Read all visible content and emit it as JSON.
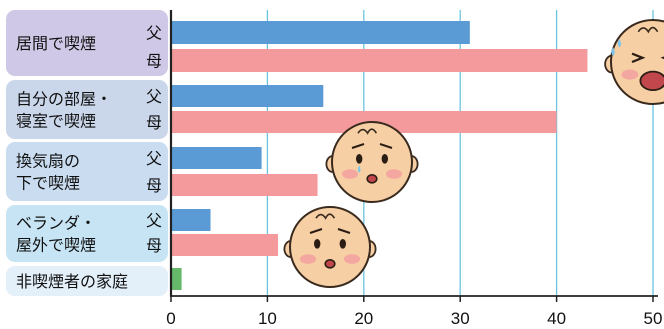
{
  "chart_data": {
    "type": "bar",
    "orientation": "horizontal",
    "categories": [
      {
        "label": [
          "居間で喫煙"
        ],
        "bg": "#cfc8e6"
      },
      {
        "label": [
          "自分の部屋・",
          "寝室で喫煙"
        ],
        "bg": "#cad6ea"
      },
      {
        "label": [
          "換気扇の",
          "下で喫煙"
        ],
        "bg": "#c9dcf0"
      },
      {
        "label": [
          "ベランダ・",
          "屋外で喫煙"
        ],
        "bg": "#c7e4f4"
      },
      {
        "label": [
          "非喫煙者の家庭"
        ],
        "bg": "#e3eff9"
      }
    ],
    "series": [
      {
        "name": "父",
        "color": "#5b9bd5",
        "values": [
          31,
          15.8,
          9.4,
          4.1,
          null
        ]
      },
      {
        "name": "母",
        "color": "#f49a9c",
        "values": [
          43.2,
          40,
          15.2,
          11.1,
          null
        ]
      },
      {
        "name": "",
        "color": "#66b86a",
        "values": [
          null,
          null,
          null,
          null,
          1.1
        ]
      }
    ],
    "xlim": [
      0,
      50
    ],
    "xticks": [
      0,
      10,
      20,
      30,
      40,
      50
    ],
    "grid": true,
    "grid_color": "#6cc3e0"
  },
  "faces": [
    {
      "name": "crying-baby-face-icon"
    },
    {
      "name": "worried-baby-face-icon"
    },
    {
      "name": "sad-baby-face-icon"
    }
  ]
}
